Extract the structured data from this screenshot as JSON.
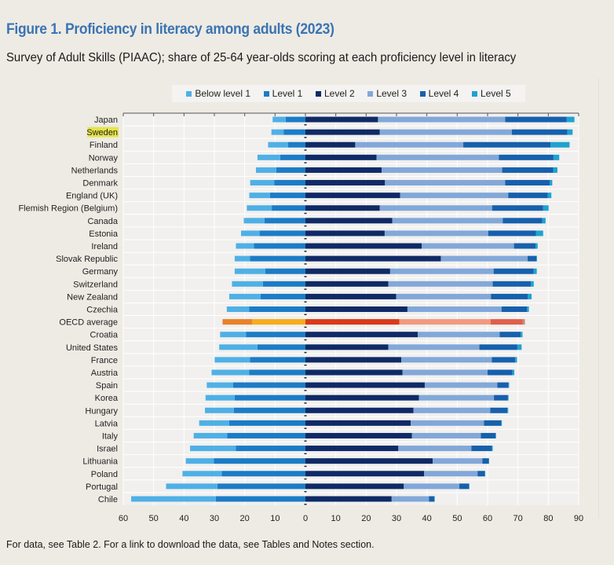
{
  "header": {
    "title": "Figure 1. Proficiency in literacy among adults (2023)",
    "subtitle": "Survey of Adult Skills (PIAAC); share of 25-64 year-olds scoring at each proficiency level in literacy"
  },
  "footer": {
    "note": "For data, see Table 2. For a link to download the data, see Tables and Notes section."
  },
  "highlighted_category": "Sweden",
  "colors": {
    "series": [
      "#4fb0e6",
      "#1b7cc7",
      "#0f2a66",
      "#82a8d9",
      "#1660ad",
      "#1ea3cf"
    ],
    "oecd_series": [
      "#e8822a",
      "#f5ac1e",
      "#d93a1a",
      "#f19a80",
      "#e0604c",
      "#c98a7c"
    ],
    "highlight": "#e6e34a",
    "plot_background": "#f1f0ef"
  },
  "chart_data": {
    "type": "bar",
    "orientation": "horizontal",
    "stacked": "diverging",
    "title": "Figure 1. Proficiency in literacy among adults (2023)",
    "subtitle": "Survey of Adult Skills (PIAAC); share of 25-64 year-olds scoring at each proficiency level in literacy",
    "xlabel": "",
    "ylabel": "",
    "xlim": [
      -60,
      90
    ],
    "xticks": [
      -60,
      -50,
      -40,
      -30,
      -20,
      -10,
      0,
      10,
      20,
      30,
      40,
      50,
      60,
      70,
      80,
      90
    ],
    "xtick_labels": [
      "60",
      "50",
      "40",
      "30",
      "20",
      "10",
      "0",
      "10",
      "20",
      "30",
      "40",
      "50",
      "60",
      "70",
      "80",
      "90"
    ],
    "grid": true,
    "legend_position": "top-center",
    "negative_series": [
      "Below level 1",
      "Level 1"
    ],
    "categories": [
      "Japan",
      "Sweden",
      "Finland",
      "Norway",
      "Netherlands",
      "Denmark",
      "England (UK)",
      "Flemish Region (Belgium)",
      "Canada",
      "Estonia",
      "Ireland",
      "Slovak Republic",
      "Germany",
      "Switzerland",
      "New Zealand",
      "Czechia",
      "OECD average",
      "Croatia",
      "United States",
      "France",
      "Austria",
      "Spain",
      "Korea",
      "Hungary",
      "Latvia",
      "Italy",
      "Israel",
      "Lithuania",
      "Poland",
      "Portugal",
      "Chile"
    ],
    "series": [
      {
        "name": "Below level 1",
        "values": [
          4.3,
          4.0,
          6.6,
          7.5,
          6.7,
          7.9,
          6.8,
          8.2,
          6.8,
          6.1,
          5.9,
          5.0,
          10.1,
          10.2,
          10.3,
          7.4,
          9.7,
          8.5,
          12.6,
          11.6,
          12.4,
          8.7,
          9.6,
          9.5,
          9.9,
          11.0,
          15.1,
          9.2,
          12.9,
          16.9,
          27.9
        ]
      },
      {
        "name": "Level 1",
        "values": [
          6.5,
          7.2,
          5.7,
          8.3,
          9.6,
          10.3,
          11.7,
          11.1,
          13.5,
          15.1,
          17.0,
          18.3,
          13.2,
          14.0,
          14.8,
          18.5,
          17.6,
          19.6,
          15.8,
          18.3,
          18.5,
          23.8,
          23.3,
          23.6,
          25.1,
          25.8,
          22.9,
          30.2,
          27.6,
          29.0,
          29.5
        ]
      },
      {
        "name": "Level 2",
        "values": [
          23.9,
          24.5,
          16.4,
          23.4,
          25.1,
          26.2,
          31.2,
          24.5,
          28.6,
          26.1,
          38.3,
          44.6,
          27.9,
          27.3,
          29.9,
          33.6,
          30.9,
          37.0,
          27.3,
          31.6,
          32.0,
          39.3,
          37.4,
          35.6,
          34.7,
          35.1,
          30.6,
          41.9,
          39.1,
          32.4,
          28.4
        ]
      },
      {
        "name": "Level 3",
        "values": [
          41.9,
          43.5,
          35.6,
          40.3,
          39.7,
          39.6,
          35.6,
          37.0,
          36.4,
          34.1,
          30.4,
          28.6,
          34.1,
          34.4,
          31.2,
          31.0,
          30.1,
          27.0,
          30.0,
          29.8,
          28.0,
          23.9,
          24.7,
          25.3,
          24.1,
          22.7,
          24.1,
          16.4,
          17.6,
          18.3,
          12.3
        ]
      },
      {
        "name": "Level 4",
        "values": [
          20.2,
          18.3,
          28.7,
          18.0,
          16.8,
          14.7,
          13.0,
          16.8,
          13.0,
          15.7,
          7.1,
          2.9,
          13.2,
          12.6,
          12.1,
          8.4,
          10.5,
          6.9,
          12.5,
          7.7,
          8.2,
          3.7,
          4.6,
          5.6,
          5.7,
          4.8,
          6.7,
          2.1,
          2.4,
          3.2,
          1.8
        ]
      },
      {
        "name": "Level 5",
        "values": [
          2.6,
          1.7,
          6.3,
          1.9,
          1.4,
          0.8,
          1.2,
          1.8,
          1.1,
          2.4,
          0.7,
          0.2,
          1.0,
          0.9,
          1.3,
          0.6,
          0.8,
          0.6,
          1.4,
          0.6,
          0.6,
          0.2,
          0.2,
          0.3,
          0.2,
          0.2,
          0.3,
          0.1,
          0.1,
          0.1,
          0.1
        ]
      }
    ]
  }
}
